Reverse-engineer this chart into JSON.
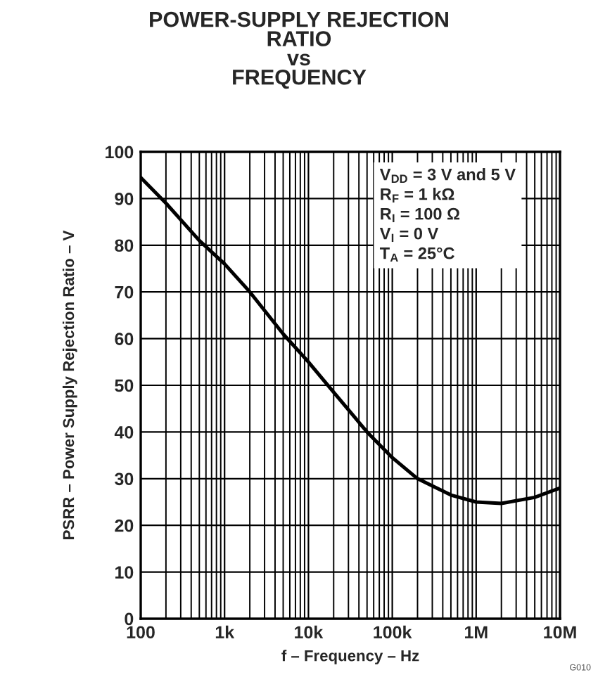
{
  "chart_data": {
    "type": "line",
    "title": "POWER-SUPPLY REJECTION\nRATIO\nvs\nFREQUENCY",
    "xlabel": "f – Frequency – Hz",
    "ylabel": "PSRR – Power Supply Rejection Ratio – V",
    "log": "x",
    "xlim": [
      100,
      10000000
    ],
    "ylim": [
      0,
      100
    ],
    "xticks": [
      {
        "value": 100,
        "label": "100"
      },
      {
        "value": 1000,
        "label": "1k"
      },
      {
        "value": 10000,
        "label": "10k"
      },
      {
        "value": 100000,
        "label": "100k"
      },
      {
        "value": 1000000,
        "label": "1M"
      },
      {
        "value": 10000000,
        "label": "10M"
      }
    ],
    "yticks": [
      0,
      10,
      20,
      30,
      40,
      50,
      60,
      70,
      80,
      90,
      100
    ],
    "grid": true,
    "marker": "none",
    "line_style": "solid",
    "series": [
      {
        "color": "#000000",
        "x": [
          100,
          200,
          500,
          1000,
          2000,
          5000,
          10000,
          20000,
          50000,
          100000,
          200000,
          500000,
          1000000,
          2000000,
          5000000,
          10000000
        ],
        "values": [
          94.5,
          89,
          81,
          76,
          70,
          61,
          55,
          48.5,
          40,
          34.5,
          30,
          26.5,
          25,
          24.7,
          26,
          28
        ]
      }
    ],
    "annotations": [
      "V$_{DD}$ = 3 V and 5 V\nR$_{F}$ = 1 kΩ\nR$_{I}$ = 100 Ω\nV$_{I}$ = 0 V\nT$_{A}$ = 25°C",
      "G010"
    ]
  }
}
